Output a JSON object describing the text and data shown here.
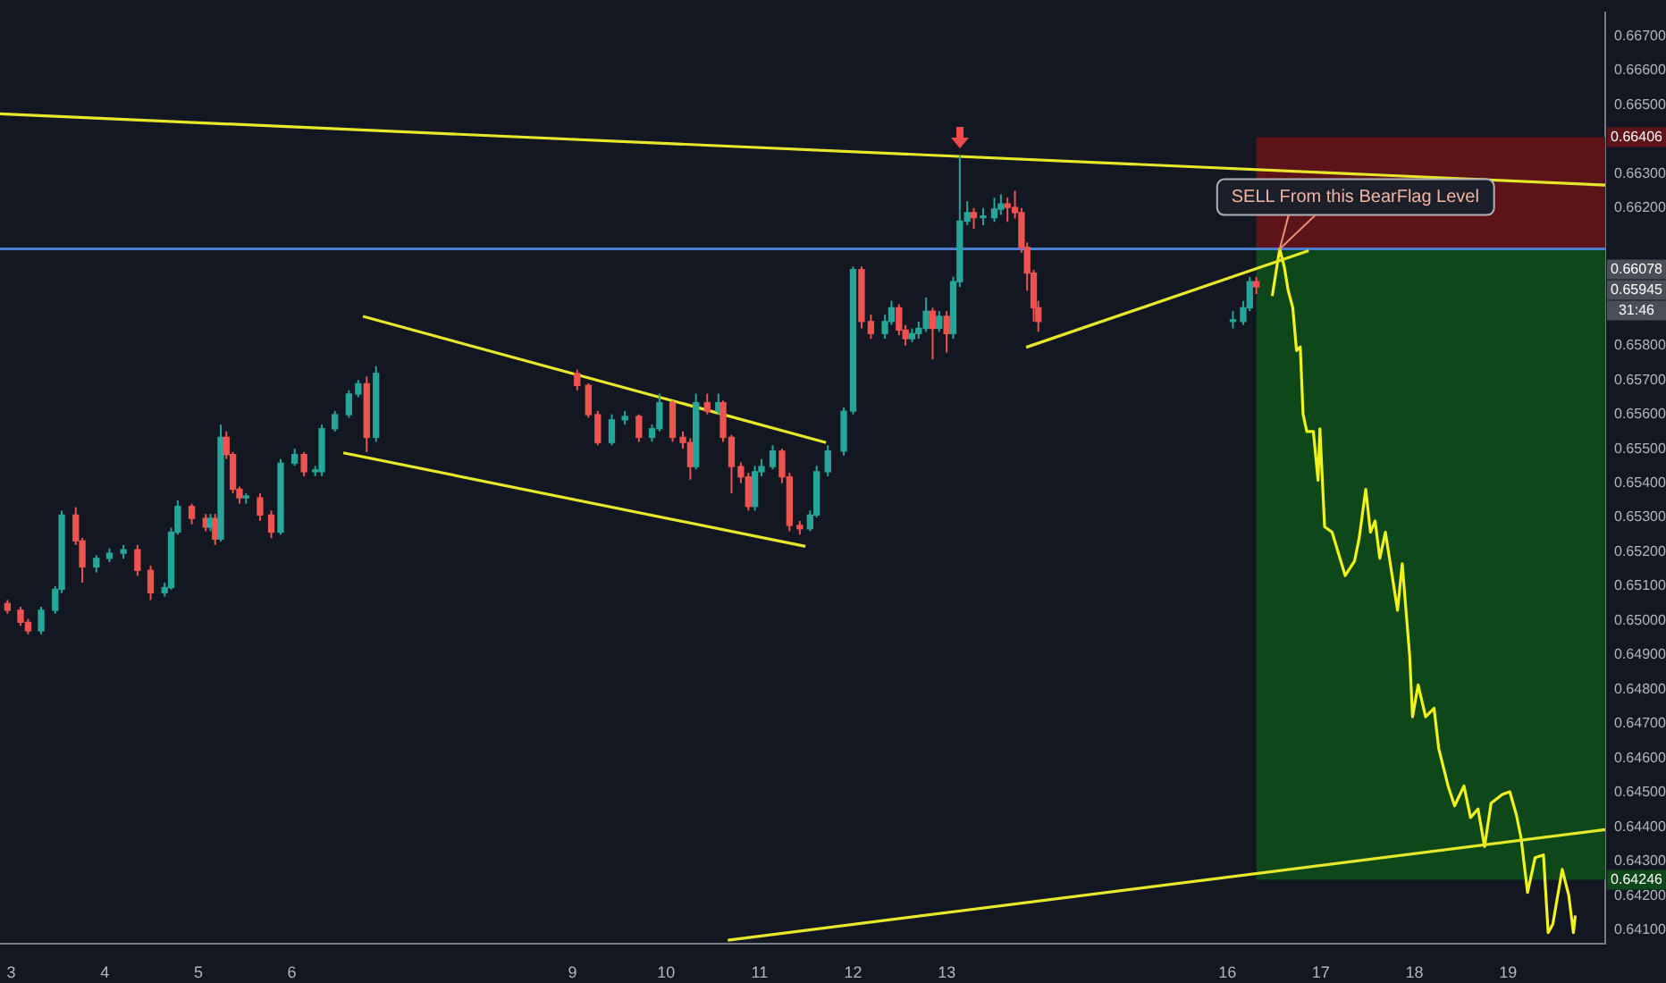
{
  "chart_data": {
    "type": "candlestick",
    "xlim": [
      2.88,
      20.04
    ],
    "xticks": [
      3,
      4,
      5,
      6,
      9,
      10,
      11,
      12,
      13,
      16,
      17,
      18,
      19
    ],
    "ylim": [
      0.6406,
      0.6677
    ],
    "yticks": [
      {
        "value": 0.641,
        "label": "0.64100"
      },
      {
        "value": 0.642,
        "label": "0.64200"
      },
      {
        "value": 0.643,
        "label": "0.64300"
      },
      {
        "value": 0.644,
        "label": "0.64400"
      },
      {
        "value": 0.645,
        "label": "0.64500"
      },
      {
        "value": 0.646,
        "label": "0.64600"
      },
      {
        "value": 0.647,
        "label": "0.64700"
      },
      {
        "value": 0.648,
        "label": "0.64800"
      },
      {
        "value": 0.649,
        "label": "0.64900"
      },
      {
        "value": 0.65,
        "label": "0.65000"
      },
      {
        "value": 0.651,
        "label": "0.65100"
      },
      {
        "value": 0.652,
        "label": "0.65200"
      },
      {
        "value": 0.653,
        "label": "0.65300"
      },
      {
        "value": 0.654,
        "label": "0.65400"
      },
      {
        "value": 0.655,
        "label": "0.65500"
      },
      {
        "value": 0.656,
        "label": "0.65600"
      },
      {
        "value": 0.657,
        "label": "0.65700"
      },
      {
        "value": 0.658,
        "label": "0.65800"
      },
      {
        "value": 0.662,
        "label": "0.66200"
      },
      {
        "value": 0.663,
        "label": "0.66300"
      },
      {
        "value": 0.665,
        "label": "0.66500"
      },
      {
        "value": 0.666,
        "label": "0.66600"
      },
      {
        "value": 0.667,
        "label": "0.66700"
      }
    ],
    "legend": false,
    "grid": false,
    "series": [
      {
        "x": [
          2.96,
          3.1,
          3.18,
          3.32,
          3.47,
          3.54,
          3.69,
          3.76,
          3.91,
          4.05,
          4.2,
          4.35,
          4.49,
          4.64,
          4.71,
          4.78,
          4.93,
          5.08,
          5.13,
          5.18,
          5.24,
          5.3,
          5.37,
          5.44,
          5.51,
          5.66,
          5.78,
          5.88,
          6.03,
          6.13,
          6.25,
          6.32,
          6.46,
          6.61,
          6.71,
          6.8,
          6.9,
          9.05,
          9.17,
          9.27,
          9.42,
          9.56,
          9.71,
          9.85,
          9.93,
          10.07,
          10.18,
          10.26,
          10.32,
          10.44,
          10.56,
          10.61,
          10.7,
          10.8,
          10.88,
          10.95,
          11.02,
          11.14,
          11.24,
          11.32,
          11.43,
          11.54,
          11.61,
          11.73,
          11.9,
          12.0,
          12.09,
          12.19,
          12.34,
          12.41,
          12.49,
          12.56,
          12.63,
          12.7,
          12.78,
          12.85,
          12.92,
          13.0,
          13.07,
          13.14,
          13.22,
          13.29,
          13.39,
          13.51,
          13.58,
          13.65,
          13.73,
          13.8,
          13.86,
          13.93,
          13.98,
          16.06,
          16.17,
          16.24,
          16.31
        ],
        "ohlc": [
          [
            0.6505,
            0.6506,
            0.6502,
            0.6503
          ],
          [
            0.6503,
            0.6504,
            0.64985,
            0.64995
          ],
          [
            0.64995,
            0.65005,
            0.6496,
            0.6497
          ],
          [
            0.6497,
            0.6504,
            0.6496,
            0.6503
          ],
          [
            0.6503,
            0.651,
            0.6502,
            0.65091
          ],
          [
            0.65091,
            0.6532,
            0.6508,
            0.65307
          ],
          [
            0.65307,
            0.6533,
            0.6522,
            0.65232
          ],
          [
            0.65232,
            0.6524,
            0.6511,
            0.65156
          ],
          [
            0.65156,
            0.6519,
            0.6514,
            0.65181
          ],
          [
            0.65181,
            0.6521,
            0.6517,
            0.65196
          ],
          [
            0.65196,
            0.6522,
            0.6518,
            0.65206
          ],
          [
            0.65206,
            0.6522,
            0.6513,
            0.65146
          ],
          [
            0.65146,
            0.6516,
            0.6506,
            0.65081
          ],
          [
            0.65081,
            0.6511,
            0.6507,
            0.65096
          ],
          [
            0.65096,
            0.6527,
            0.6509,
            0.65257
          ],
          [
            0.65257,
            0.6535,
            0.6525,
            0.65332
          ],
          [
            0.65332,
            0.6534,
            0.6528,
            0.65297
          ],
          [
            0.65297,
            0.6531,
            0.6526,
            0.65272
          ],
          [
            0.65272,
            0.6531,
            0.6526,
            0.65297
          ],
          [
            0.65297,
            0.6531,
            0.6522,
            0.65237
          ],
          [
            0.65237,
            0.6557,
            0.6523,
            0.65533
          ],
          [
            0.65533,
            0.6555,
            0.6547,
            0.65483
          ],
          [
            0.65483,
            0.6549,
            0.6537,
            0.65382
          ],
          [
            0.65382,
            0.6539,
            0.6534,
            0.65357
          ],
          [
            0.65357,
            0.6537,
            0.6534,
            0.65357
          ],
          [
            0.65357,
            0.6537,
            0.6529,
            0.65307
          ],
          [
            0.65307,
            0.6532,
            0.6524,
            0.65257
          ],
          [
            0.65257,
            0.6547,
            0.6525,
            0.65458
          ],
          [
            0.65458,
            0.655,
            0.6545,
            0.65483
          ],
          [
            0.65483,
            0.6549,
            0.6542,
            0.65433
          ],
          [
            0.65433,
            0.6545,
            0.6542,
            0.65433
          ],
          [
            0.65433,
            0.6557,
            0.6542,
            0.65558
          ],
          [
            0.65558,
            0.6561,
            0.6555,
            0.65599
          ],
          [
            0.65599,
            0.6567,
            0.6559,
            0.65659
          ],
          [
            0.65659,
            0.657,
            0.6565,
            0.65689
          ],
          [
            0.65689,
            0.6571,
            0.6549,
            0.65533
          ],
          [
            0.65533,
            0.6574,
            0.6552,
            0.65719
          ],
          [
            0.65719,
            0.6573,
            0.6567,
            0.65684
          ],
          [
            0.65684,
            0.6569,
            0.6559,
            0.65599
          ],
          [
            0.65599,
            0.6561,
            0.6551,
            0.65518
          ],
          [
            0.65518,
            0.656,
            0.6551,
            0.65584
          ],
          [
            0.65584,
            0.6561,
            0.6557,
            0.65594
          ],
          [
            0.65594,
            0.656,
            0.6552,
            0.65533
          ],
          [
            0.65533,
            0.6557,
            0.6552,
            0.65558
          ],
          [
            0.65558,
            0.6566,
            0.6555,
            0.65634
          ],
          [
            0.65634,
            0.6564,
            0.6552,
            0.65533
          ],
          [
            0.65533,
            0.6555,
            0.655,
            0.65518
          ],
          [
            0.65518,
            0.6553,
            0.6541,
            0.65448
          ],
          [
            0.65448,
            0.6566,
            0.6544,
            0.65634
          ],
          [
            0.65634,
            0.6566,
            0.656,
            0.65609
          ],
          [
            0.65609,
            0.6566,
            0.656,
            0.65634
          ],
          [
            0.65634,
            0.6564,
            0.6552,
            0.65533
          ],
          [
            0.65533,
            0.6554,
            0.6537,
            0.65448
          ],
          [
            0.65448,
            0.6546,
            0.654,
            0.65418
          ],
          [
            0.65418,
            0.6543,
            0.6532,
            0.65332
          ],
          [
            0.65332,
            0.6545,
            0.6532,
            0.65433
          ],
          [
            0.65433,
            0.6547,
            0.6542,
            0.65448
          ],
          [
            0.65448,
            0.6551,
            0.6544,
            0.65493
          ],
          [
            0.65493,
            0.655,
            0.654,
            0.65418
          ],
          [
            0.65418,
            0.6543,
            0.6526,
            0.65277
          ],
          [
            0.65277,
            0.6529,
            0.6525,
            0.65267
          ],
          [
            0.65267,
            0.6532,
            0.6526,
            0.65307
          ],
          [
            0.65307,
            0.6545,
            0.653,
            0.65433
          ],
          [
            0.65433,
            0.6551,
            0.6542,
            0.65493
          ],
          [
            0.65493,
            0.6562,
            0.6548,
            0.65609
          ],
          [
            0.65609,
            0.6603,
            0.656,
            0.66021
          ],
          [
            0.66021,
            0.6603,
            0.6585,
            0.6587
          ],
          [
            0.6587,
            0.6589,
            0.6582,
            0.65835
          ],
          [
            0.65835,
            0.6589,
            0.6582,
            0.6587
          ],
          [
            0.6587,
            0.6593,
            0.6586,
            0.6591
          ],
          [
            0.6591,
            0.6592,
            0.6583,
            0.65845
          ],
          [
            0.65845,
            0.6586,
            0.658,
            0.6582
          ],
          [
            0.6582,
            0.6585,
            0.6581,
            0.65835
          ],
          [
            0.65835,
            0.6587,
            0.6582,
            0.6585
          ],
          [
            0.6585,
            0.6594,
            0.6584,
            0.659
          ],
          [
            0.659,
            0.6591,
            0.6576,
            0.6585
          ],
          [
            0.6585,
            0.659,
            0.6584,
            0.65885
          ],
          [
            0.65885,
            0.659,
            0.6578,
            0.65835
          ],
          [
            0.65835,
            0.66,
            0.6582,
            0.65986
          ],
          [
            0.65986,
            0.66353,
            0.6597,
            0.66162
          ],
          [
            0.66162,
            0.6622,
            0.6615,
            0.66187
          ],
          [
            0.66187,
            0.662,
            0.6614,
            0.66172
          ],
          [
            0.66172,
            0.662,
            0.6615,
            0.66172
          ],
          [
            0.66172,
            0.6623,
            0.6616,
            0.66197
          ],
          [
            0.66197,
            0.6624,
            0.6618,
            0.66212
          ],
          [
            0.66212,
            0.6623,
            0.6616,
            0.66202
          ],
          [
            0.66202,
            0.6625,
            0.6617,
            0.66187
          ],
          [
            0.66187,
            0.662,
            0.6607,
            0.66086
          ],
          [
            0.66086,
            0.661,
            0.6596,
            0.66011
          ],
          [
            0.66011,
            0.6602,
            0.6587,
            0.6591
          ],
          [
            0.6591,
            0.6593,
            0.6584,
            0.6587
          ],
          [
            0.6587,
            0.659,
            0.6585,
            0.6587
          ],
          [
            0.6587,
            0.6593,
            0.6586,
            0.6591
          ],
          [
            0.6591,
            0.66,
            0.659,
            0.65986
          ],
          [
            0.65986,
            0.66,
            0.6595,
            0.65971
          ]
        ]
      },
      {
        "type": "line",
        "color": "#e8e82a",
        "x": [
          2.88,
          20.04
        ],
        "values": [
          0.66474,
          0.66267
        ]
      },
      {
        "type": "line",
        "color": "#e8e82a",
        "x": [
          6.76,
          11.71
        ],
        "values": [
          0.65885,
          0.65518
        ]
      },
      {
        "type": "line",
        "color": "#e8e82a",
        "x": [
          6.55,
          11.49
        ],
        "values": [
          0.65488,
          0.65216
        ]
      },
      {
        "type": "line",
        "color": "#e8e82a",
        "x": [
          13.85,
          16.87
        ],
        "values": [
          0.65795,
          0.66076
        ]
      },
      {
        "type": "line",
        "color": "#e8e82a",
        "x": [
          10.66,
          20.04
        ],
        "values": [
          0.6407,
          0.64392
        ]
      },
      {
        "type": "line",
        "color": "#f2f21c",
        "x": [
          16.48,
          16.56,
          16.61,
          16.65,
          16.7,
          16.74,
          16.78,
          16.81,
          16.85,
          16.92,
          16.97,
          16.99,
          17.04,
          17.12,
          17.26,
          17.36,
          17.41,
          17.48,
          17.53,
          17.58,
          17.63,
          17.69,
          17.82,
          17.87,
          17.95,
          17.98,
          18.04,
          18.12,
          18.21,
          18.26,
          18.36,
          18.43,
          18.53,
          18.6,
          18.68,
          18.75,
          18.82,
          18.94,
          19.02,
          19.09,
          19.14,
          19.21,
          19.29,
          19.38,
          19.43,
          19.48,
          19.58,
          19.65,
          19.7,
          19.72
        ],
        "values": [
          0.65944,
          0.66081,
          0.66028,
          0.65961,
          0.6591,
          0.65785,
          0.65796,
          0.656,
          0.6555,
          0.6555,
          0.65408,
          0.65558,
          0.65273,
          0.65257,
          0.65131,
          0.65173,
          0.6524,
          0.65382,
          0.65257,
          0.6529,
          0.65181,
          0.65257,
          0.6503,
          0.65165,
          0.64896,
          0.6472,
          0.64813,
          0.6472,
          0.64745,
          0.64628,
          0.64519,
          0.64461,
          0.64519,
          0.64427,
          0.64452,
          0.64343,
          0.64469,
          0.64494,
          0.64502,
          0.64435,
          0.64368,
          0.64209,
          0.6431,
          0.64318,
          0.64092,
          0.64117,
          0.64276,
          0.64201,
          0.64092,
          0.64142
        ]
      }
    ],
    "ref_lines": [
      {
        "axis": "y",
        "value": 0.66081,
        "label": null,
        "color": "#4a7fd0"
      }
    ],
    "bands": [
      {
        "axis": "y",
        "from": 0.66081,
        "to": 0.66406,
        "label": "0.66406",
        "color": "#5c1419"
      },
      {
        "axis": "y",
        "from": 0.64246,
        "to": 0.66081,
        "label": "0.64246",
        "color": "#0e4719"
      }
    ],
    "annotations": [
      {
        "text": "SELL From this BearFlag Level",
        "x": 16.56,
        "y": 0.66081
      },
      "0.66078",
      "0.65945",
      "31:46"
    ]
  }
}
